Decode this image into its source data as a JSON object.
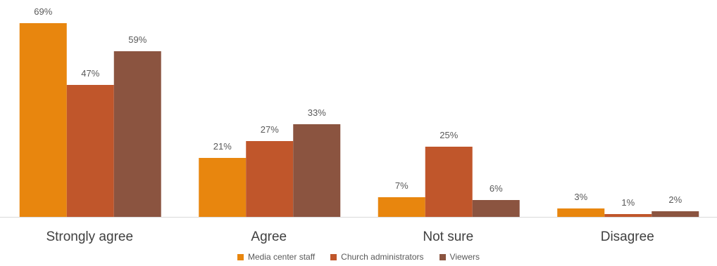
{
  "chart_data": {
    "type": "bar",
    "categories": [
      "Strongly agree",
      "Agree",
      "Not sure",
      "Disagree"
    ],
    "series": [
      {
        "name": "Media center staff",
        "color": "#E8860E",
        "values": [
          69,
          21,
          7,
          3
        ]
      },
      {
        "name": "Church administrators",
        "color": "#C0562B",
        "values": [
          47,
          27,
          25,
          1
        ]
      },
      {
        "name": "Viewers",
        "color": "#8B5440",
        "values": [
          59,
          33,
          6,
          2
        ]
      }
    ],
    "value_suffix": "%",
    "ylim": [
      0,
      70
    ],
    "grid": false,
    "legend_position": "bottom",
    "axis_color": "#D9D9D9"
  }
}
